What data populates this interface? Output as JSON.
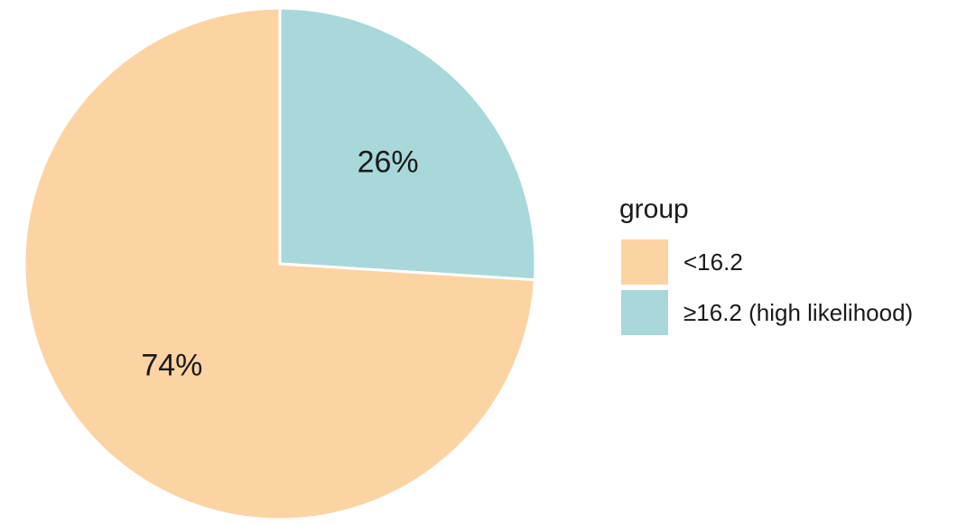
{
  "chart_data": {
    "type": "pie",
    "slices": [
      {
        "label": "<16.2",
        "value": 74,
        "display": "74%",
        "color": "#FCD3A3"
      },
      {
        "label": "≥16.2 (high likelihood)",
        "value": 26,
        "display": "26%",
        "color": "#A8D8DA"
      }
    ],
    "legend": {
      "title": "group",
      "position": "right"
    },
    "slice_order": "clockwise from 12 o'clock, second slice first",
    "border_color": "#ffffff"
  }
}
